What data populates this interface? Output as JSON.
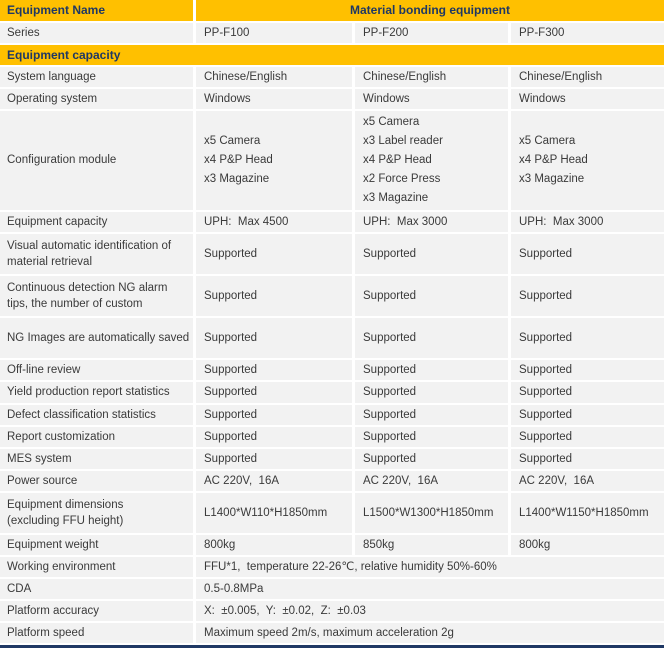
{
  "header": {
    "col1": "Equipment Name",
    "merged": "Material bonding equipment"
  },
  "series": {
    "label": "Series",
    "values": [
      "PP-F100",
      "PP-F200",
      "PP-F300"
    ]
  },
  "section": {
    "title": "Equipment capacity"
  },
  "rows": [
    {
      "label": "System language",
      "values": [
        "Chinese/English",
        "Chinese/English",
        "Chinese/English"
      ]
    },
    {
      "label": "Operating system",
      "values": [
        "Windows",
        "Windows",
        "Windows"
      ]
    },
    {
      "label": "Configuration module",
      "values": [
        "x5 Camera\nx4 P&P Head\nx3 Magazine",
        "x5 Camera\nx3 Label reader\nx4 P&P Head\nx2 Force Press\nx3 Magazine",
        "x5 Camera\nx4 P&P Head\nx3 Magazine"
      ]
    },
    {
      "label": "Equipment capacity",
      "values": [
        "UPH:  Max 4500",
        "UPH:  Max 3000",
        "UPH:  Max 3000"
      ]
    },
    {
      "label": "Visual automatic identification of material retrieval",
      "values": [
        "Supported",
        "Supported",
        "Supported"
      ]
    },
    {
      "label": "Continuous detection NG alarm tips, the number of custom",
      "values": [
        "Supported",
        "Supported",
        "Supported"
      ]
    },
    {
      "label": "NG Images are automatically saved",
      "values": [
        "Supported",
        "Supported",
        "Supported"
      ]
    },
    {
      "label": "Off-line review",
      "values": [
        "Supported",
        "Supported",
        "Supported"
      ]
    },
    {
      "label": "Yield production report statistics",
      "values": [
        "Supported",
        "Supported",
        "Supported"
      ]
    },
    {
      "label": "Defect classification statistics",
      "values": [
        "Supported",
        "Supported",
        "Supported"
      ]
    },
    {
      "label": "Report customization",
      "values": [
        "Supported",
        "Supported",
        "Supported"
      ]
    },
    {
      "label": "MES system",
      "values": [
        "Supported",
        "Supported",
        "Supported"
      ]
    },
    {
      "label": "Power source",
      "values": [
        "AC 220V,  16A",
        "AC 220V,  16A",
        "AC 220V,  16A"
      ]
    },
    {
      "label": "Equipment dimensions\n(excluding FFU height)",
      "values": [
        "L1400*W110*H1850mm",
        "L1500*W1300*H1850mm",
        "L1400*W1150*H1850mm"
      ]
    },
    {
      "label": "Equipment weight",
      "values": [
        "800kg",
        "850kg",
        "800kg"
      ]
    }
  ],
  "spans": [
    {
      "label": "Working environment",
      "value": "FFU*1,  temperature 22-26℃, relative humidity 50%-60%"
    },
    {
      "label": "CDA",
      "value": "0.5-0.8MPa"
    },
    {
      "label": "Platform accuracy",
      "value": "X:  ±0.005,  Y:  ±0.02,  Z:  ±0.03"
    },
    {
      "label": "Platform speed",
      "value": "Maximum speed 2m/s, maximum acceleration 2g"
    }
  ],
  "colors": {
    "header_bg": "#FFC000",
    "header_text": "#1F3864",
    "row_bg": "#F2F2F2",
    "body_text": "#3A3A3A",
    "footer_bar": "#1F3864"
  }
}
